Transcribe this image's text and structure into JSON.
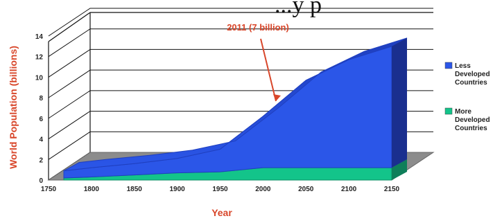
{
  "chart_data": {
    "type": "area",
    "title": "",
    "title_visible_fragment": "...y  p",
    "xlabel": "Year",
    "ylabel": "World Population (billions)",
    "x_ticks": [
      1750,
      1800,
      1850,
      1900,
      1950,
      2000,
      2050,
      2100,
      2150
    ],
    "y_ticks": [
      0,
      2,
      4,
      6,
      8,
      10,
      12,
      14
    ],
    "xlim": [
      1750,
      2150
    ],
    "ylim": [
      0,
      14
    ],
    "stacked": true,
    "three_d": true,
    "x": [
      1750,
      1800,
      1850,
      1900,
      1950,
      2000,
      2050,
      2100,
      2150
    ],
    "series": [
      {
        "name": "More Developed Countries",
        "color": "#13c48a",
        "values": [
          0.2,
          0.3,
          0.5,
          0.7,
          0.8,
          1.2,
          1.2,
          1.2,
          1.2
        ]
      },
      {
        "name": "Less Developed Countries",
        "color": "#2b56e8",
        "values": [
          0.7,
          0.9,
          1.1,
          1.4,
          2.2,
          5.0,
          8.5,
          10.5,
          11.8
        ]
      }
    ],
    "legend": {
      "placement": "right",
      "entries": [
        {
          "lines": [
            "Less",
            "Developed",
            "Countries"
          ],
          "color": "#2b56e8"
        },
        {
          "lines": [
            "More",
            "Developed",
            "Countries"
          ],
          "color": "#13c48a"
        }
      ]
    },
    "annotations": [
      {
        "text": "2011 (7 billion)",
        "x": 2011,
        "y": 7
      }
    ],
    "grid": true
  }
}
